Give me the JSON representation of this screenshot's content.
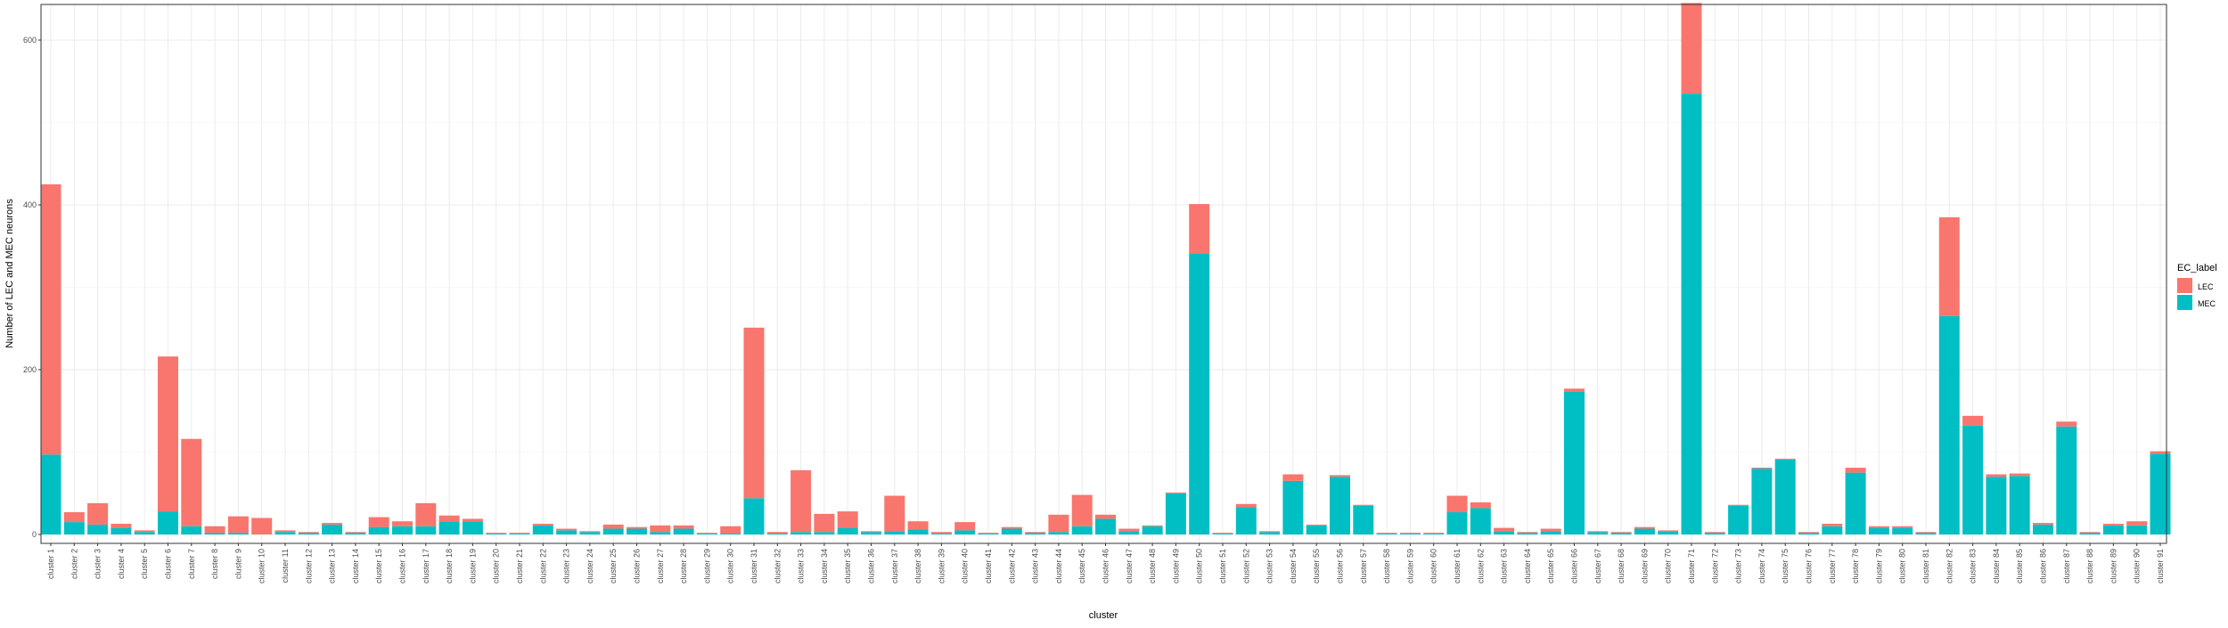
{
  "chart_data": {
    "type": "bar",
    "stacked": true,
    "xlabel": "cluster",
    "ylabel": "Number of LEC and MEC neurons",
    "ylim": [
      0,
      660
    ],
    "yticks": [
      0,
      200,
      400,
      600
    ],
    "grid": true,
    "legend": {
      "title": "EC_label",
      "placement": "right",
      "entries": [
        "LEC",
        "MEC"
      ]
    },
    "categories": [
      "cluster 1",
      "cluster 2",
      "cluster 3",
      "cluster 4",
      "cluster 5",
      "cluster 6",
      "cluster 7",
      "cluster 8",
      "cluster 9",
      "cluster 10",
      "cluster 11",
      "cluster 12",
      "cluster 13",
      "cluster 14",
      "cluster 15",
      "cluster 16",
      "cluster 17",
      "cluster 18",
      "cluster 19",
      "cluster 20",
      "cluster 21",
      "cluster 22",
      "cluster 23",
      "cluster 24",
      "cluster 25",
      "cluster 26",
      "cluster 27",
      "cluster 28",
      "cluster 29",
      "cluster 30",
      "cluster 31",
      "cluster 32",
      "cluster 33",
      "cluster 34",
      "cluster 35",
      "cluster 36",
      "cluster 37",
      "cluster 38",
      "cluster 39",
      "cluster 40",
      "cluster 41",
      "cluster 42",
      "cluster 43",
      "cluster 44",
      "cluster 45",
      "cluster 46",
      "cluster 47",
      "cluster 48",
      "cluster 49",
      "cluster 50",
      "cluster 51",
      "cluster 52",
      "cluster 53",
      "cluster 54",
      "cluster 55",
      "cluster 56",
      "cluster 57",
      "cluster 58",
      "cluster 59",
      "cluster 60",
      "cluster 61",
      "cluster 62",
      "cluster 63",
      "cluster 64",
      "cluster 65",
      "cluster 66",
      "cluster 67",
      "cluster 68",
      "cluster 69",
      "cluster 70",
      "cluster 71",
      "cluster 72",
      "cluster 73",
      "cluster 74",
      "cluster 75",
      "cluster 76",
      "cluster 77",
      "cluster 78",
      "cluster 79",
      "cluster 80",
      "cluster 81",
      "cluster 82",
      "cluster 83",
      "cluster 84",
      "cluster 85",
      "cluster 86",
      "cluster 87",
      "cluster 88",
      "cluster 89",
      "cluster 90",
      "cluster 91"
    ],
    "series": [
      {
        "name": "LEC",
        "color": "#F8766D",
        "values": [
          328,
          12,
          26,
          5,
          2,
          188,
          106,
          8,
          20,
          20,
          2,
          1,
          2,
          1,
          12,
          6,
          28,
          7,
          3,
          1,
          1,
          2,
          2,
          1,
          5,
          2,
          8,
          4,
          1,
          9,
          207,
          2,
          75,
          22,
          20,
          1,
          43,
          10,
          2,
          10,
          1,
          2,
          1,
          21,
          38,
          5,
          3,
          1,
          1,
          60,
          1,
          4,
          1,
          8,
          1,
          2,
          1,
          1,
          1,
          1,
          20,
          7,
          4,
          1,
          3,
          4,
          1,
          1,
          2,
          1,
          110,
          1,
          1,
          1,
          1,
          1,
          3,
          6,
          2,
          2,
          1,
          120,
          12,
          3,
          3,
          2,
          6,
          1,
          2,
          5,
          3
        ]
      },
      {
        "name": "MEC",
        "color": "#00BFC4",
        "values": [
          97,
          15,
          12,
          8,
          3,
          28,
          10,
          2,
          2,
          0,
          3,
          2,
          12,
          2,
          9,
          10,
          10,
          16,
          16,
          1,
          1,
          11,
          5,
          3,
          7,
          7,
          3,
          7,
          1,
          1,
          44,
          1,
          3,
          3,
          8,
          3,
          4,
          6,
          1,
          5,
          1,
          7,
          2,
          3,
          10,
          19,
          4,
          10,
          50,
          341,
          1,
          33,
          3,
          65,
          11,
          70,
          35,
          1,
          1,
          1,
          27,
          32,
          4,
          2,
          4,
          173,
          3,
          2,
          7,
          4,
          535,
          2,
          35,
          80,
          91,
          2,
          10,
          75,
          8,
          8,
          2,
          265,
          132,
          70,
          71,
          12,
          131,
          2,
          11,
          11,
          98
        ]
      }
    ]
  }
}
